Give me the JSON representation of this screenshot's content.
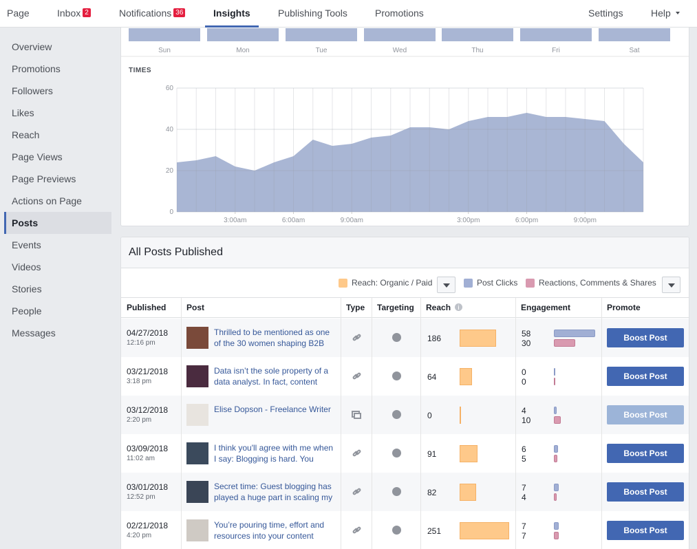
{
  "nav": {
    "tabs": [
      {
        "label": "Page"
      },
      {
        "label": "Inbox",
        "badge": "2"
      },
      {
        "label": "Notifications",
        "badge": "36"
      },
      {
        "label": "Insights",
        "active": true
      },
      {
        "label": "Publishing Tools"
      },
      {
        "label": "Promotions"
      }
    ],
    "right": [
      "Settings",
      "Help"
    ]
  },
  "sidebar": [
    {
      "label": "Overview"
    },
    {
      "label": "Promotions"
    },
    {
      "label": "Followers"
    },
    {
      "label": "Likes"
    },
    {
      "label": "Reach"
    },
    {
      "label": "Page Views"
    },
    {
      "label": "Page Previews"
    },
    {
      "label": "Actions on Page"
    },
    {
      "label": "Posts",
      "active": true
    },
    {
      "label": "Events"
    },
    {
      "label": "Videos"
    },
    {
      "label": "Stories"
    },
    {
      "label": "People"
    },
    {
      "label": "Messages"
    }
  ],
  "days_chart": {
    "days": [
      "Sun",
      "Mon",
      "Tue",
      "Wed",
      "Thu",
      "Fri",
      "Sat"
    ],
    "color": "#a9b6d4"
  },
  "times_chart": {
    "type": "area",
    "title": "TIMES",
    "color": "#a9b6d4",
    "x": [
      0,
      1,
      2,
      3,
      4,
      5,
      6,
      7,
      8,
      9,
      10,
      11,
      12,
      13,
      14,
      15,
      16,
      17,
      18,
      19,
      20,
      21,
      22,
      23,
      24
    ],
    "values": [
      24,
      25,
      27,
      22,
      20,
      24,
      27,
      35,
      32,
      33,
      36,
      37,
      41,
      41,
      40,
      44,
      46,
      46,
      48,
      46,
      46,
      45,
      44,
      33,
      24
    ],
    "xlim": [
      0,
      24
    ],
    "ylim": [
      0,
      60
    ],
    "yticks": [
      0,
      20,
      40,
      60
    ],
    "xticks": [
      {
        "value": 3,
        "label": "3:00am"
      },
      {
        "value": 6,
        "label": "6:00am"
      },
      {
        "value": 9,
        "label": "9:00am"
      },
      {
        "value": 15,
        "label": "3:00pm"
      },
      {
        "value": 18,
        "label": "6:00pm"
      },
      {
        "value": 21,
        "label": "9:00pm"
      }
    ],
    "grid": true
  },
  "posts": {
    "title": "All Posts Published",
    "legend": [
      {
        "label": "Reach: Organic / Paid",
        "color": "#fec98a"
      },
      {
        "label": "Post Clicks",
        "color": "#a1afd4"
      },
      {
        "label": "Reactions, Comments & Shares",
        "color": "#d99ab0"
      }
    ],
    "columns": [
      "Published",
      "Post",
      "Type",
      "Targeting",
      "Reach",
      "Engagement",
      "Promote"
    ],
    "rows": [
      {
        "date": "04/27/2018",
        "time": "12:16 pm",
        "post": "Thrilled to be mentioned as one of the 30 women shaping B2B",
        "type": "link",
        "reach": 186,
        "clicks": 58,
        "reactions": 30,
        "boost": "Boost Post",
        "boost_enabled": true
      },
      {
        "date": "03/21/2018",
        "time": "3:18 pm",
        "post": "Data isn’t the sole property of a data analyst. In fact, content",
        "type": "link",
        "reach": 64,
        "clicks": 0,
        "reactions": 0,
        "boost": "Boost Post",
        "boost_enabled": true
      },
      {
        "date": "03/12/2018",
        "time": "2:20 pm",
        "post": "Elise Dopson - Freelance Writer",
        "type": "album",
        "reach": 0,
        "clicks": 4,
        "reactions": 10,
        "boost": "Boost Post",
        "boost_enabled": false
      },
      {
        "date": "03/09/2018",
        "time": "11:02 am",
        "post": "I think you'll agree with me when I say: Blogging is hard. You",
        "type": "link",
        "reach": 91,
        "clicks": 6,
        "reactions": 5,
        "boost": "Boost Post",
        "boost_enabled": true
      },
      {
        "date": "03/01/2018",
        "time": "12:52 pm",
        "post": "Secret time: Guest blogging has played a huge part in scaling my",
        "type": "link",
        "reach": 82,
        "clicks": 7,
        "reactions": 4,
        "boost": "Boost Post",
        "boost_enabled": true
      },
      {
        "date": "02/21/2018",
        "time": "4:20 pm",
        "post": "You’re pouring time, effort and resources into your content",
        "type": "link",
        "reach": 251,
        "clicks": 7,
        "reactions": 7,
        "boost": "Boost Post",
        "boost_enabled": true
      }
    ]
  }
}
